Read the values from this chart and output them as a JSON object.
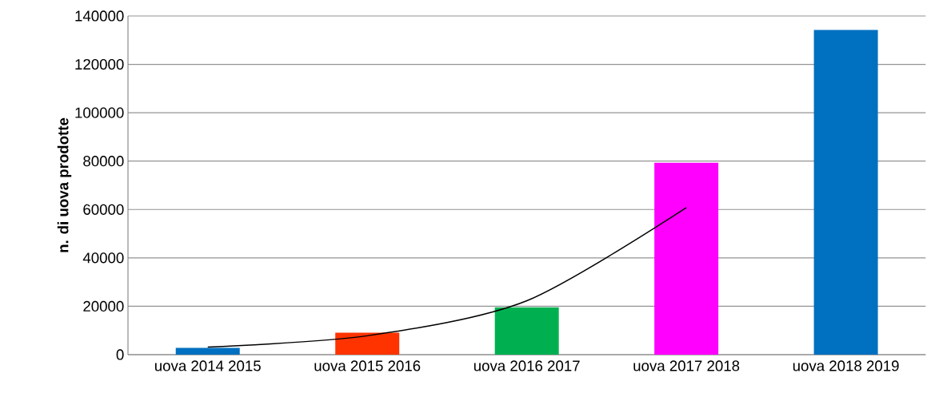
{
  "chart_data": {
    "type": "bar",
    "ylabel": "n. di uova prodotte",
    "categories": [
      "uova 2014 2015",
      "uova 2015 2016",
      "uova 2016 2017",
      "uova 2017 2018",
      "uova 2018 2019"
    ],
    "ylim": [
      0,
      140000
    ],
    "yticks": [
      0,
      20000,
      40000,
      60000,
      80000,
      100000,
      120000,
      140000
    ],
    "grid": "y",
    "series": [
      {
        "values": [
          2800,
          9100,
          19600,
          79300,
          134200
        ],
        "colors": [
          "#0070c0",
          "#ff3300",
          "#00b050",
          "#ff00ff",
          "#0070c0"
        ]
      },
      {
        "type": "line",
        "color": "#000000",
        "values": [
          3100,
          7800,
          22300,
          60800,
          null
        ]
      }
    ]
  }
}
